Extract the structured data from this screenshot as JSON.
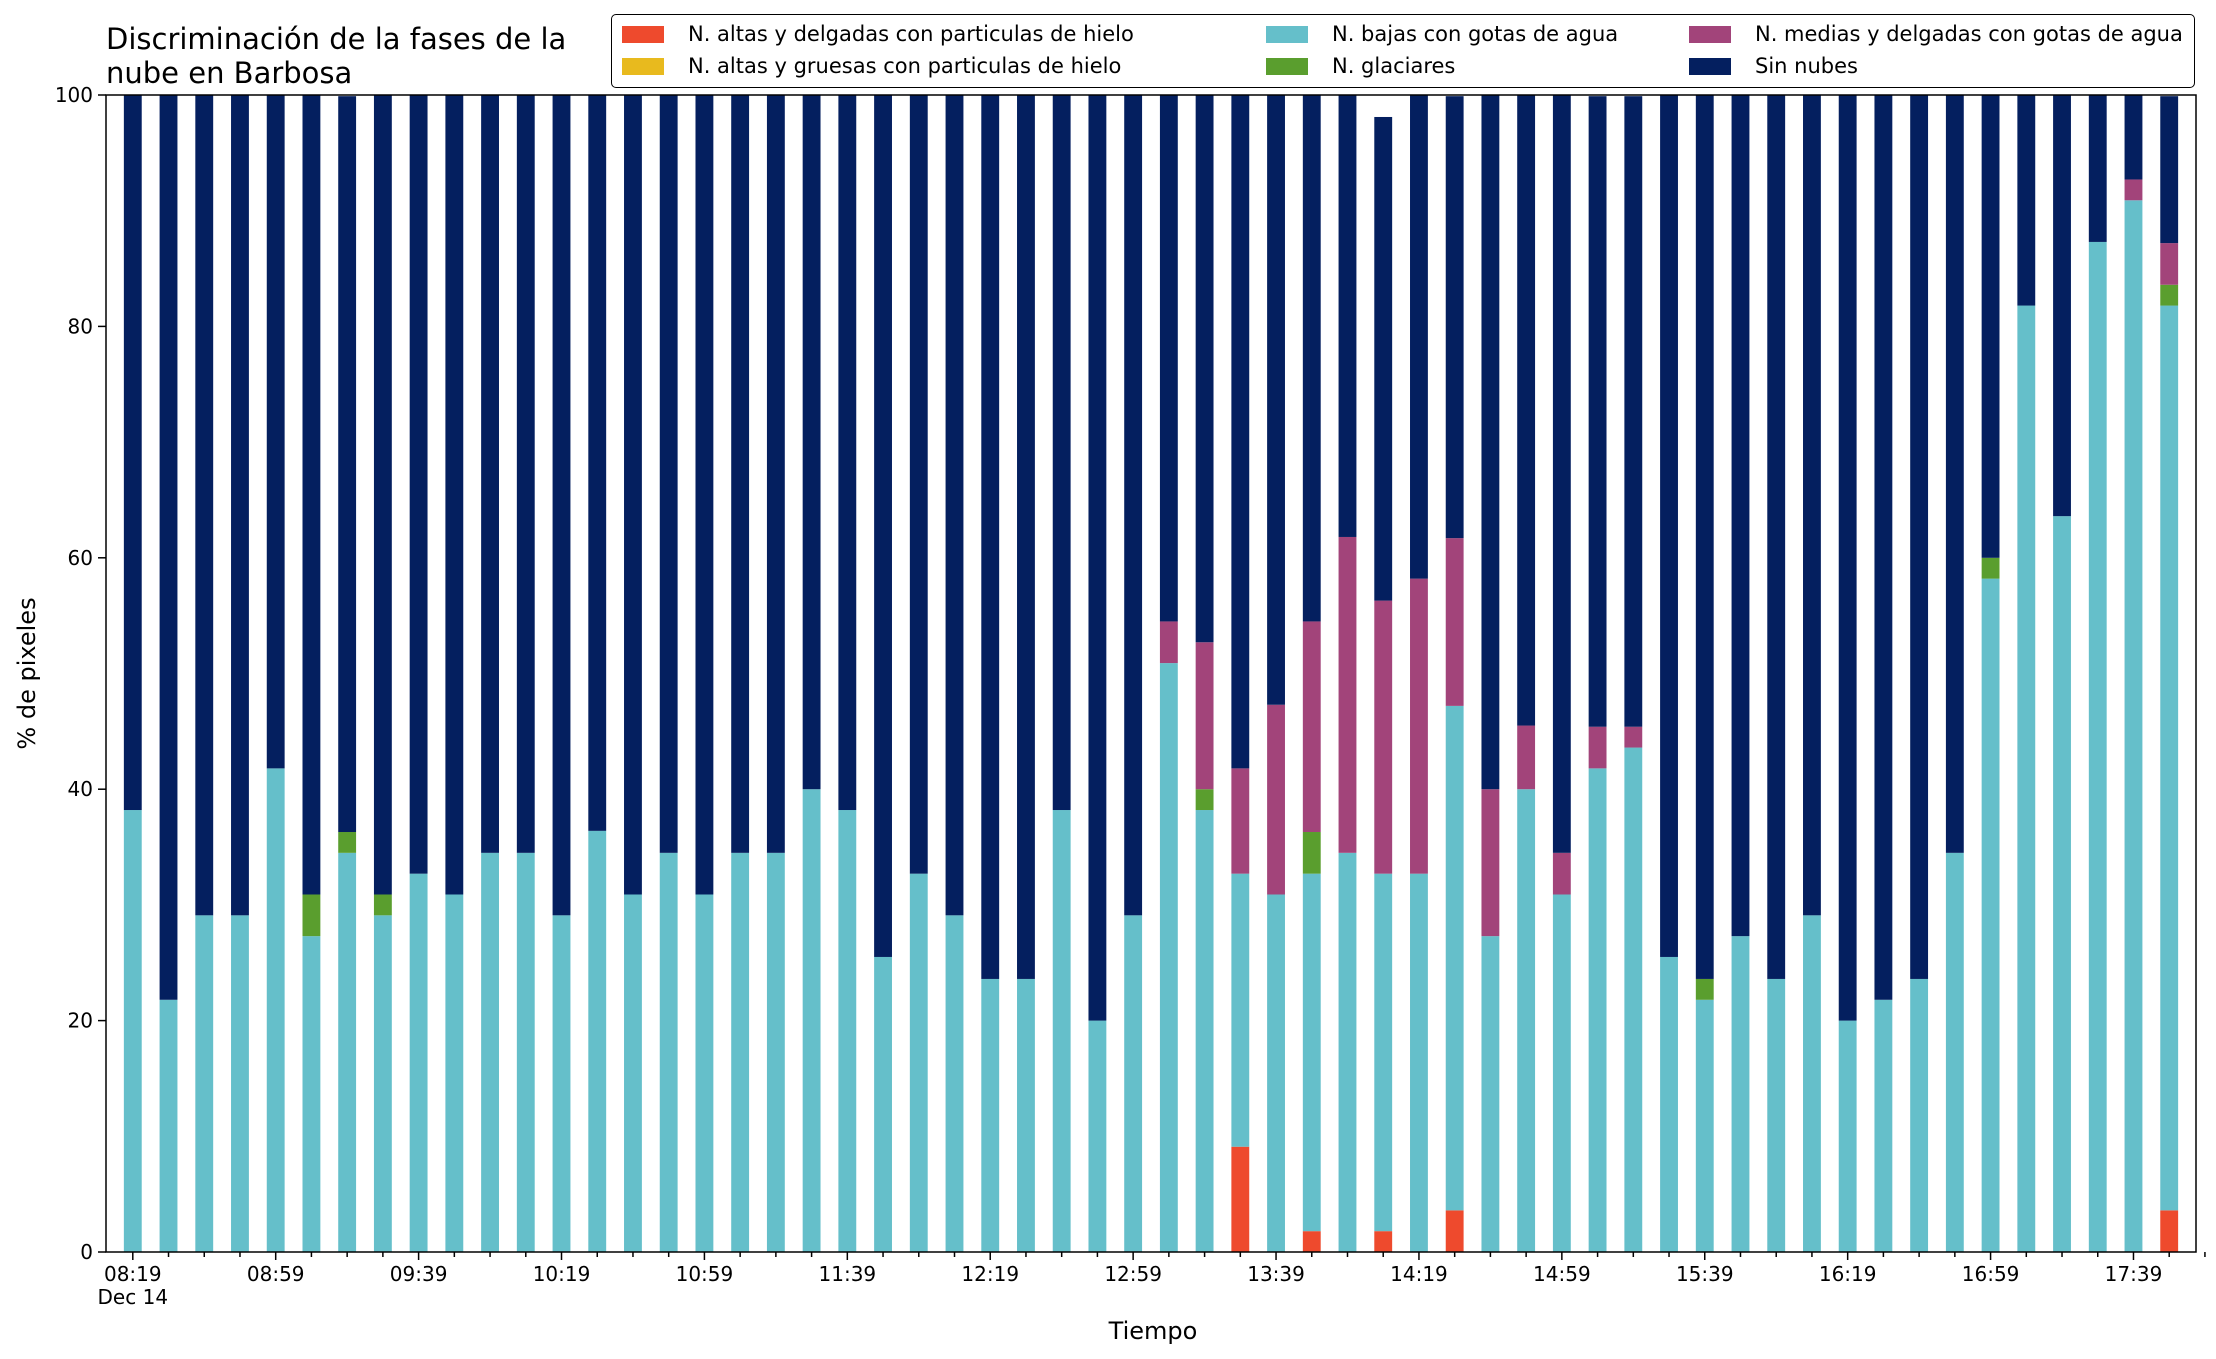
{
  "chart_data": {
    "type": "bar",
    "stacked": true,
    "title": "Discriminación de la fases de la\nnube en Barbosa",
    "xlabel": "Tiempo",
    "ylabel": "% de pixeles",
    "ylim": [
      0,
      100
    ],
    "yticks": [
      0,
      20,
      40,
      60,
      80,
      100
    ],
    "xtick_labels": [
      "08:19",
      "08:59",
      "09:39",
      "10:19",
      "10:59",
      "11:39",
      "12:19",
      "12:59",
      "13:39",
      "14:19",
      "14:59",
      "15:39",
      "16:19",
      "16:59",
      "17:39"
    ],
    "xtick_sublabel": "Dec 14",
    "grid": false,
    "legend_position": "top-right",
    "categories": [
      "08:19",
      "08:29",
      "08:39",
      "08:49",
      "08:59",
      "09:09",
      "09:19",
      "09:29",
      "09:39",
      "09:49",
      "09:59",
      "10:09",
      "10:19",
      "10:29",
      "10:39",
      "10:49",
      "10:59",
      "11:09",
      "11:19",
      "11:29",
      "11:39",
      "11:49",
      "11:59",
      "12:09",
      "12:19",
      "12:29",
      "12:39",
      "12:49",
      "12:59",
      "13:09",
      "13:19",
      "13:29",
      "13:39",
      "13:49",
      "13:59",
      "14:09",
      "14:19",
      "14:29",
      "14:39",
      "14:49",
      "14:59",
      "15:09",
      "15:19",
      "15:29",
      "15:39",
      "15:49",
      "15:59",
      "16:09",
      "16:19",
      "16:29",
      "16:39",
      "16:49",
      "16:59",
      "17:09",
      "17:19",
      "17:29",
      "17:39",
      "17:49"
    ],
    "series": [
      {
        "name": "N. altas y delgadas con particulas de hielo",
        "color": "#ee4a2d",
        "values": [
          0,
          0,
          0,
          0,
          0,
          0,
          0,
          0,
          0,
          0,
          0,
          0,
          0,
          0,
          0,
          0,
          0,
          0,
          0,
          0,
          0,
          0,
          0,
          0,
          0,
          0,
          0,
          0,
          0,
          0,
          0,
          9.1,
          0,
          1.8,
          0,
          1.8,
          0,
          3.6,
          0,
          0,
          0,
          0,
          0,
          0,
          0,
          0,
          0,
          0,
          0,
          0,
          0,
          0,
          0,
          0,
          0,
          0,
          0,
          3.6
        ]
      },
      {
        "name": "N. altas y gruesas con particulas de hielo",
        "color": "#e8ba1e",
        "values": [
          0,
          0,
          0,
          0,
          0,
          0,
          0,
          0,
          0,
          0,
          0,
          0,
          0,
          0,
          0,
          0,
          0,
          0,
          0,
          0,
          0,
          0,
          0,
          0,
          0,
          0,
          0,
          0,
          0,
          0,
          0,
          0,
          0,
          0,
          0,
          0,
          0,
          0,
          0,
          0,
          0,
          0,
          0,
          0,
          0,
          0,
          0,
          0,
          0,
          0,
          0,
          0,
          0,
          0,
          0,
          0,
          0,
          0
        ]
      },
      {
        "name": "N. bajas con gotas de agua",
        "color": "#65bfca",
        "values": [
          38.2,
          21.8,
          29.1,
          29.1,
          41.8,
          27.3,
          34.5,
          29.1,
          32.7,
          30.9,
          34.5,
          34.5,
          29.1,
          36.4,
          30.9,
          34.5,
          30.9,
          34.5,
          34.5,
          40.0,
          38.2,
          25.5,
          32.7,
          29.1,
          23.6,
          23.6,
          38.2,
          20.0,
          29.1,
          50.9,
          38.2,
          23.6,
          30.9,
          30.9,
          34.5,
          30.9,
          32.7,
          43.6,
          27.3,
          40.0,
          30.9,
          41.8,
          43.6,
          25.5,
          21.8,
          27.3,
          23.6,
          29.1,
          20.0,
          21.8,
          23.6,
          34.5,
          58.2,
          81.8,
          63.6,
          87.3,
          90.9,
          78.2
        ]
      },
      {
        "name": "N. glaciares",
        "color": "#5a9e2e",
        "values": [
          0,
          0,
          0,
          0,
          0,
          3.6,
          1.8,
          1.8,
          0,
          0,
          0,
          0,
          0,
          0,
          0,
          0,
          0,
          0,
          0,
          0,
          0,
          0,
          0,
          0,
          0,
          0,
          0,
          0,
          0,
          0,
          1.8,
          0,
          0,
          3.6,
          0,
          0,
          0,
          0,
          0,
          0,
          0,
          0,
          0,
          0,
          1.8,
          0,
          0,
          0,
          0,
          0,
          0,
          0,
          1.8,
          0,
          0,
          0,
          0,
          1.8
        ]
      },
      {
        "name": "N. medias y delgadas con gotas de agua",
        "color": "#a2447a",
        "values": [
          0,
          0,
          0,
          0,
          0,
          0,
          0,
          0,
          0,
          0,
          0,
          0,
          0,
          0,
          0,
          0,
          0,
          0,
          0,
          0,
          0,
          0,
          0,
          0,
          0,
          0,
          0,
          0,
          0,
          3.6,
          12.7,
          9.1,
          16.4,
          18.2,
          27.3,
          23.6,
          25.5,
          14.5,
          12.7,
          5.5,
          3.6,
          3.6,
          1.8,
          0,
          0,
          0,
          0,
          0,
          0,
          0,
          0,
          0,
          0,
          0,
          0,
          0,
          1.8,
          3.6
        ]
      },
      {
        "name": "Sin nubes",
        "color": "#041f5f",
        "values": [
          61.8,
          78.2,
          70.9,
          70.9,
          58.2,
          69.1,
          63.6,
          69.1,
          67.3,
          69.1,
          65.5,
          65.5,
          70.9,
          63.6,
          69.1,
          65.5,
          69.1,
          65.5,
          65.5,
          60.0,
          61.8,
          74.5,
          67.3,
          70.9,
          76.4,
          76.4,
          61.8,
          80.0,
          70.9,
          45.5,
          47.3,
          58.2,
          52.7,
          45.5,
          38.2,
          41.8,
          41.8,
          38.2,
          60.0,
          54.5,
          65.5,
          54.5,
          54.5,
          74.5,
          76.4,
          72.7,
          76.4,
          70.9,
          80.0,
          78.2,
          76.4,
          65.5,
          40.0,
          18.2,
          36.4,
          12.7,
          7.3,
          12.7
        ]
      }
    ]
  }
}
